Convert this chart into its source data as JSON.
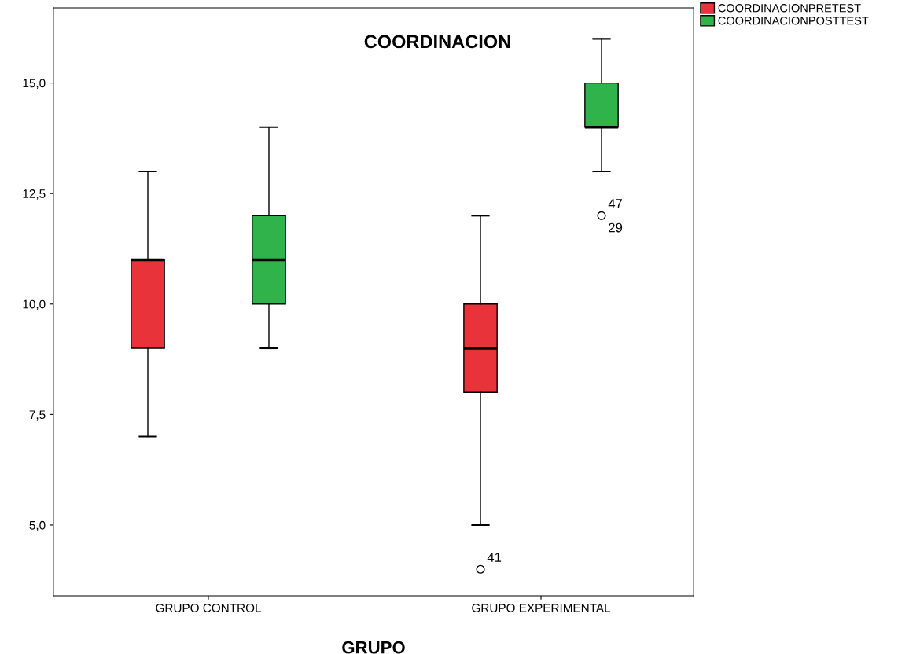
{
  "chart_data": {
    "type": "box",
    "title": "COORDINACION",
    "xlabel": "GRUPO",
    "categories": [
      "GRUPO CONTROL",
      "GRUPO EXPERIMENTAL"
    ],
    "series": [
      {
        "name": "COORDINACIONPRETEST",
        "color": "#e8333b",
        "boxes": [
          {
            "low": 7,
            "q1": 9,
            "median": 11,
            "q3": 11,
            "high": 13
          },
          {
            "low": 5,
            "q1": 8,
            "median": 9,
            "q3": 10,
            "high": 12,
            "outliers": [
              4
            ]
          }
        ]
      },
      {
        "name": "COORDINACIONPOSTTEST",
        "color": "#2fb34a",
        "boxes": [
          {
            "low": 9,
            "q1": 10,
            "median": 11,
            "q3": 12,
            "high": 14
          },
          {
            "low": 13,
            "q1": 14,
            "median": 14,
            "q3": 15,
            "high": 16,
            "outliers": [
              12
            ]
          }
        ]
      }
    ],
    "annotations": [
      "41",
      "47",
      "29"
    ],
    "ylim": [
      3.4,
      16.7
    ],
    "yticks": [
      {
        "value": 5,
        "label": "5,0"
      },
      {
        "value": 7.5,
        "label": "7,5"
      },
      {
        "value": 10,
        "label": "10,0"
      },
      {
        "value": 12.5,
        "label": "12,5"
      },
      {
        "value": 15,
        "label": "15,0"
      }
    ],
    "grid": false,
    "legend": "top right"
  }
}
